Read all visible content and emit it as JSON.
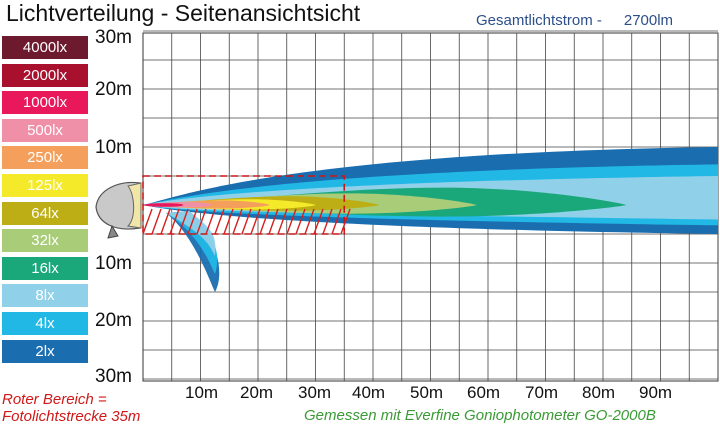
{
  "title": "Lichtverteilung - Seitenansichtsicht",
  "flux": {
    "label": "Gesamtlichtstrom -",
    "value": "2700lm"
  },
  "legend": [
    {
      "label": "4000lx",
      "color": "#6e1a2e"
    },
    {
      "label": "2000lx",
      "color": "#a8102e"
    },
    {
      "label": "1000lx",
      "color": "#e8185a"
    },
    {
      "label": "500lx",
      "color": "#f090a8"
    },
    {
      "label": "250lx",
      "color": "#f4a05c"
    },
    {
      "label": "125lx",
      "color": "#f4ea2a"
    },
    {
      "label": "64lx",
      "color": "#bcae14"
    },
    {
      "label": "32lx",
      "color": "#a8cc78"
    },
    {
      "label": "16lx",
      "color": "#1aa87a"
    },
    {
      "label": "8lx",
      "color": "#90d0e8"
    },
    {
      "label": "4lx",
      "color": "#22b8e6"
    },
    {
      "label": "2lx",
      "color": "#1a6eb0"
    }
  ],
  "notes": {
    "red_line1": "Roter Bereich =",
    "red_line2": "Fotolichtstrecke 35m",
    "measurement": "Gemessen mit Everfine Goniophotometer GO-2000B"
  },
  "chart_data": {
    "type": "heatmap",
    "x_tick_labels": [
      "10m",
      "20m",
      "30m",
      "40m",
      "50m",
      "60m",
      "70m",
      "80m",
      "90m"
    ],
    "y_tick_labels": [
      "30m",
      "20m",
      "10m",
      "10m",
      "20m",
      "30m"
    ],
    "x_range_m": [
      0,
      100
    ],
    "y_range_m": [
      -30,
      30
    ],
    "grid": true,
    "series": [
      {
        "name": "2lx",
        "reach_m": 100,
        "up_m": 10,
        "down_m": 5
      },
      {
        "name": "4lx",
        "reach_m": 100,
        "up_m": 7,
        "down_m": 3.5
      },
      {
        "name": "8lx",
        "reach_m": 100,
        "up_m": 5,
        "down_m": 2.5
      },
      {
        "name": "16lx",
        "reach_m": 84,
        "up_m": 3,
        "down_m": 2
      },
      {
        "name": "32lx",
        "reach_m": 58,
        "up_m": 2,
        "down_m": 1.5
      },
      {
        "name": "64lx",
        "reach_m": 41,
        "up_m": 1.5,
        "down_m": 1
      },
      {
        "name": "125lx",
        "reach_m": 30,
        "up_m": 1,
        "down_m": 0.8
      },
      {
        "name": "250lx",
        "reach_m": 22,
        "up_m": 0.8,
        "down_m": 0.6
      },
      {
        "name": "500lx",
        "reach_m": 12,
        "up_m": 0.5,
        "down_m": 0.4
      },
      {
        "name": "1000lx",
        "reach_m": 7,
        "up_m": 0.3,
        "down_m": 0.3
      }
    ],
    "highlight_zone": {
      "label": "Fotolichtstrecke",
      "x_m": [
        0,
        35
      ],
      "y_m": [
        -5,
        5
      ]
    },
    "ground_spill": {
      "series": [
        "2lx",
        "4lx",
        "8lx"
      ],
      "reach_down_m": 15,
      "x_center_m": 12
    }
  }
}
